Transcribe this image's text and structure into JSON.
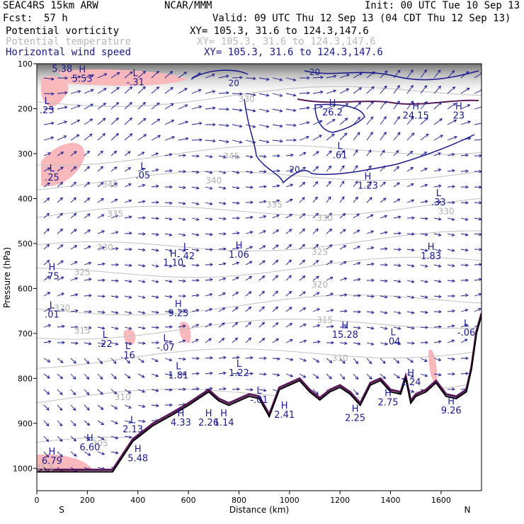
{
  "header": {
    "model": "SEAC4RS 15km ARW",
    "org": "NCAR/MMM",
    "init": "Init: 00 UTC Tue 10 Sep 13",
    "fcst_label": "Fcst:",
    "fcst_value": "57 h",
    "valid": "Valid: 09 UTC Thu 12 Sep 13 (04 CDT Thu 12 Sep 13)",
    "fields": [
      {
        "name": "Potential vorticity",
        "xy": "XY= 105.3, 31.6 to 124.3,147.6",
        "color": "#000000"
      },
      {
        "name": "Potential temperature",
        "xy": "XY= 105.3, 31.6 to 124.3,147.6",
        "color": "#b8b8b8"
      },
      {
        "name": "Horizontal wind speed",
        "xy": "XY= 105.3, 31.6 to 124.3,147.6",
        "color": "#1a1a8c"
      }
    ]
  },
  "chart_data": {
    "type": "cross-section",
    "xlabel": "Distance (km)",
    "ylabel": "Pressure (hPa)",
    "xlim": [
      0,
      1760
    ],
    "ylim": [
      1050,
      100
    ],
    "xticks": [
      0,
      200,
      400,
      600,
      800,
      1000,
      1200,
      1400,
      1600
    ],
    "yticks": [
      100,
      200,
      300,
      400,
      500,
      600,
      700,
      800,
      900,
      1000
    ],
    "x_end_labels": {
      "left": "S",
      "right": "N"
    },
    "terrain": [
      [
        0,
        1008
      ],
      [
        300,
        1008
      ],
      [
        380,
        940
      ],
      [
        460,
        905
      ],
      [
        540,
        880
      ],
      [
        600,
        860
      ],
      [
        640,
        845
      ],
      [
        680,
        830
      ],
      [
        720,
        850
      ],
      [
        760,
        860
      ],
      [
        800,
        850
      ],
      [
        840,
        840
      ],
      [
        880,
        845
      ],
      [
        920,
        885
      ],
      [
        960,
        825
      ],
      [
        1000,
        815
      ],
      [
        1040,
        805
      ],
      [
        1080,
        830
      ],
      [
        1120,
        848
      ],
      [
        1160,
        830
      ],
      [
        1200,
        820
      ],
      [
        1240,
        835
      ],
      [
        1280,
        860
      ],
      [
        1320,
        815
      ],
      [
        1360,
        805
      ],
      [
        1400,
        830
      ],
      [
        1440,
        835
      ],
      [
        1460,
        800
      ],
      [
        1480,
        855
      ],
      [
        1500,
        840
      ],
      [
        1540,
        830
      ],
      [
        1580,
        810
      ],
      [
        1620,
        840
      ],
      [
        1660,
        845
      ],
      [
        1700,
        830
      ],
      [
        1720,
        780
      ],
      [
        1740,
        700
      ],
      [
        1760,
        660
      ]
    ],
    "potential_temperature": [
      {
        "label": "345",
        "x": 770,
        "p": 312
      },
      {
        "label": "340",
        "x": 290,
        "p": 375
      },
      {
        "label": "340",
        "x": 700,
        "p": 366
      },
      {
        "label": "335",
        "x": 310,
        "p": 440
      },
      {
        "label": "335",
        "x": 940,
        "p": 420
      },
      {
        "label": "330",
        "x": 270,
        "p": 515
      },
      {
        "label": "330",
        "x": 1140,
        "p": 450
      },
      {
        "label": "330",
        "x": 1620,
        "p": 435
      },
      {
        "label": "325",
        "x": 180,
        "p": 570
      },
      {
        "label": "325",
        "x": 1120,
        "p": 525
      },
      {
        "label": "320",
        "x": 100,
        "p": 650
      },
      {
        "label": "320",
        "x": 1120,
        "p": 598
      },
      {
        "label": "315",
        "x": 180,
        "p": 700
      },
      {
        "label": "315",
        "x": 1140,
        "p": 677
      },
      {
        "label": "310",
        "x": 1200,
        "p": 762
      },
      {
        "label": "310",
        "x": 340,
        "p": 848
      },
      {
        "label": "305",
        "x": 250,
        "p": 951
      },
      {
        "label": "301.5",
        "x": 20,
        "p": 1005
      },
      {
        "label": "330",
        "x": 830,
        "p": 185
      }
    ],
    "wind_speed_labels": [
      {
        "label": "20",
        "x": 780,
        "p": 150
      },
      {
        "label": "20",
        "x": 1100,
        "p": 125
      },
      {
        "label": "20",
        "x": 1020,
        "p": 342
      }
    ],
    "extrema": [
      {
        "kind": "H",
        "value": "5.38",
        "x": 100,
        "p": 118
      },
      {
        "kind": "H",
        "value": "5.53",
        "x": 180,
        "p": 140
      },
      {
        "kind": "L",
        "value": "-.31",
        "x": 390,
        "p": 148
      },
      {
        "kind": "L",
        "value": ".25",
        "x": 40,
        "p": 210
      },
      {
        "kind": "L",
        "value": ".25",
        "x": 60,
        "p": 360
      },
      {
        "kind": "L",
        "value": ".05",
        "x": 420,
        "p": 355
      },
      {
        "kind": "H",
        "value": "26.2",
        "x": 1170,
        "p": 215
      },
      {
        "kind": "H",
        "value": "24.15",
        "x": 1500,
        "p": 222
      },
      {
        "kind": "H",
        "value": "23",
        "x": 1670,
        "p": 222
      },
      {
        "kind": "L",
        "value": ".61",
        "x": 1200,
        "p": 310
      },
      {
        "kind": "H",
        "value": "1.23",
        "x": 1310,
        "p": 378
      },
      {
        "kind": "L",
        "value": ".33",
        "x": 1590,
        "p": 415
      },
      {
        "kind": "L",
        "value": "-.42",
        "x": 590,
        "p": 535
      },
      {
        "kind": "H",
        "value": "1.10",
        "x": 540,
        "p": 550
      },
      {
        "kind": "H",
        "value": "1.06",
        "x": 800,
        "p": 532
      },
      {
        "kind": "H",
        "value": "1.83",
        "x": 1560,
        "p": 535
      },
      {
        "kind": "H",
        "value": ".75",
        "x": 60,
        "p": 580
      },
      {
        "kind": "L",
        "value": ".01",
        "x": 60,
        "p": 665
      },
      {
        "kind": "H",
        "value": "9.23",
        "x": 560,
        "p": 662
      },
      {
        "kind": "H",
        "value": "15.28",
        "x": 1220,
        "p": 710
      },
      {
        "kind": "L",
        "value": ".04",
        "x": 1410,
        "p": 725
      },
      {
        "kind": "L",
        "value": "-.06",
        "x": 1700,
        "p": 705
      },
      {
        "kind": "L",
        "value": ".22",
        "x": 270,
        "p": 730
      },
      {
        "kind": "L",
        "value": "-.07",
        "x": 510,
        "p": 738
      },
      {
        "kind": "L",
        "value": ".16",
        "x": 360,
        "p": 755
      },
      {
        "kind": "L",
        "value": "1.81",
        "x": 560,
        "p": 800
      },
      {
        "kind": "L",
        "value": "1.22",
        "x": 800,
        "p": 795
      },
      {
        "kind": "H",
        "value": "1.24",
        "x": 1480,
        "p": 815
      },
      {
        "kind": "L",
        "value": "-.01",
        "x": 880,
        "p": 855
      },
      {
        "kind": "H",
        "value": "2.75",
        "x": 1390,
        "p": 860
      },
      {
        "kind": "H",
        "value": "2.41",
        "x": 980,
        "p": 888
      },
      {
        "kind": "H",
        "value": "2.25",
        "x": 1260,
        "p": 895
      },
      {
        "kind": "H",
        "value": "9.26",
        "x": 1640,
        "p": 878
      },
      {
        "kind": "H",
        "value": "4.33",
        "x": 570,
        "p": 905
      },
      {
        "kind": "H",
        "value": "2.26",
        "x": 680,
        "p": 905
      },
      {
        "kind": "H",
        "value": "1.14",
        "x": 740,
        "p": 905
      },
      {
        "kind": "L",
        "value": "2.13",
        "x": 380,
        "p": 920
      },
      {
        "kind": "H",
        "value": "6.60",
        "x": 210,
        "p": 960
      },
      {
        "kind": "H",
        "value": "5.48",
        "x": 400,
        "p": 985
      },
      {
        "kind": "H",
        "value": "6.79",
        "x": 60,
        "p": 990
      }
    ]
  }
}
